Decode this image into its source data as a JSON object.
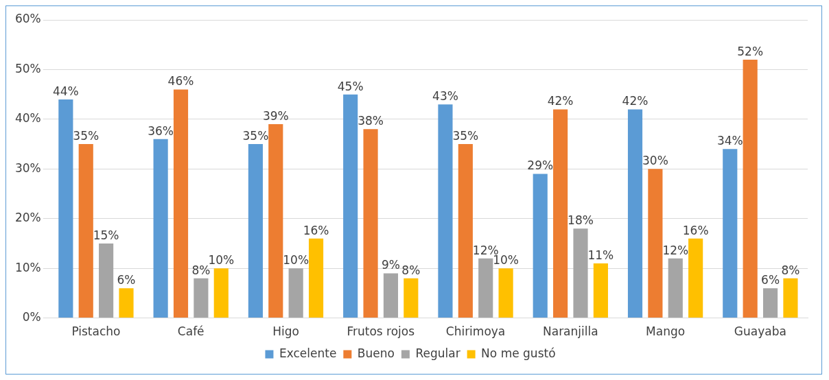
{
  "chart_data": {
    "type": "bar",
    "categories": [
      "Pistacho",
      "Café",
      "Higo",
      "Frutos rojos",
      "Chirimoya",
      "Naranjilla",
      "Mango",
      "Guayaba"
    ],
    "series": [
      {
        "name": "Excelente",
        "color": "#5b9bd5",
        "values": [
          44,
          36,
          35,
          45,
          43,
          29,
          42,
          34
        ],
        "value_labels": [
          "44%",
          "36%",
          "35%",
          "45%",
          "43%",
          "29%",
          "42%",
          "34%"
        ]
      },
      {
        "name": "Bueno",
        "color": "#ed7d31",
        "values": [
          35,
          46,
          39,
          38,
          35,
          42,
          30,
          52
        ],
        "value_labels": [
          "35%",
          "46%",
          "39%",
          "38%",
          "35%",
          "42%",
          "30%",
          "52%"
        ]
      },
      {
        "name": "Regular",
        "color": "#a5a5a5",
        "values": [
          15,
          8,
          10,
          9,
          12,
          18,
          12,
          6
        ],
        "value_labels": [
          "15%",
          "8%",
          "10%",
          "9%",
          "12%",
          "18%",
          "12%",
          "6%"
        ]
      },
      {
        "name": "No me gustó",
        "color": "#ffc000",
        "values": [
          6,
          10,
          16,
          8,
          10,
          11,
          16,
          8
        ],
        "value_labels": [
          "6%",
          "10%",
          "16%",
          "8%",
          "10%",
          "11%",
          "16%",
          "8%"
        ]
      }
    ],
    "ylim": [
      0,
      60
    ],
    "yticks": [
      {
        "value": 0,
        "label": "0%"
      },
      {
        "value": 10,
        "label": "10%"
      },
      {
        "value": 20,
        "label": "20%"
      },
      {
        "value": 30,
        "label": "30%"
      },
      {
        "value": 40,
        "label": "40%"
      },
      {
        "value": 50,
        "label": "50%"
      },
      {
        "value": 60,
        "label": "60%"
      }
    ],
    "grid": "y",
    "legend": "bottom"
  }
}
